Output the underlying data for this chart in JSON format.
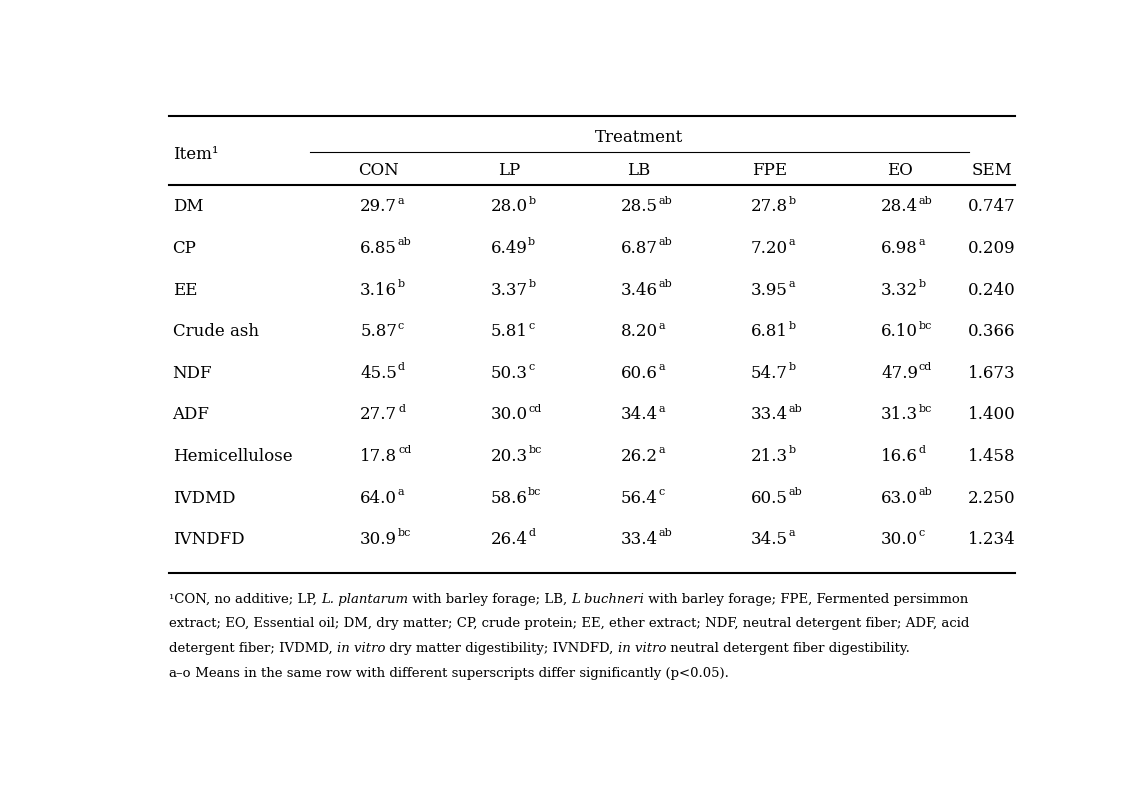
{
  "title": "Treatment",
  "col_headers": [
    "CON",
    "LP",
    "LB",
    "FPE",
    "EO"
  ],
  "rows": [
    {
      "item": "DM",
      "values": [
        "29.7",
        "28.0",
        "28.5",
        "27.8",
        "28.4"
      ],
      "sups": [
        "a",
        "b",
        "ab",
        "b",
        "ab"
      ],
      "SEM": "0.747"
    },
    {
      "item": "CP",
      "values": [
        "6.85",
        "6.49",
        "6.87",
        "7.20",
        "6.98"
      ],
      "sups": [
        "ab",
        "b",
        "ab",
        "a",
        "a"
      ],
      "SEM": "0.209"
    },
    {
      "item": "EE",
      "values": [
        "3.16",
        "3.37",
        "3.46",
        "3.95",
        "3.32"
      ],
      "sups": [
        "b",
        "b",
        "ab",
        "a",
        "b"
      ],
      "SEM": "0.240"
    },
    {
      "item": "Crude ash",
      "values": [
        "5.87",
        "5.81",
        "8.20",
        "6.81",
        "6.10"
      ],
      "sups": [
        "c",
        "c",
        "a",
        "b",
        "bc"
      ],
      "SEM": "0.366"
    },
    {
      "item": "NDF",
      "values": [
        "45.5",
        "50.3",
        "60.6",
        "54.7",
        "47.9"
      ],
      "sups": [
        "d",
        "c",
        "a",
        "b",
        "cd"
      ],
      "SEM": "1.673"
    },
    {
      "item": "ADF",
      "values": [
        "27.7",
        "30.0",
        "34.4",
        "33.4",
        "31.3"
      ],
      "sups": [
        "d",
        "cd",
        "a",
        "ab",
        "bc"
      ],
      "SEM": "1.400"
    },
    {
      "item": "Hemicellulose",
      "values": [
        "17.8",
        "20.3",
        "26.2",
        "21.3",
        "16.6"
      ],
      "sups": [
        "cd",
        "bc",
        "a",
        "b",
        "d"
      ],
      "SEM": "1.458"
    },
    {
      "item": "IVDMD",
      "values": [
        "64.0",
        "58.6",
        "56.4",
        "60.5",
        "63.0"
      ],
      "sups": [
        "a",
        "bc",
        "c",
        "ab",
        "ab"
      ],
      "SEM": "2.250"
    },
    {
      "item": "IVNDFD",
      "values": [
        "30.9",
        "26.4",
        "33.4",
        "34.5",
        "30.0"
      ],
      "sups": [
        "bc",
        "d",
        "ab",
        "a",
        "c"
      ],
      "SEM": "1.234"
    }
  ],
  "bg_color": "#ffffff",
  "text_color": "#000000",
  "font_size": 12,
  "sup_font_size": 8,
  "font_family": "DejaVu Serif"
}
